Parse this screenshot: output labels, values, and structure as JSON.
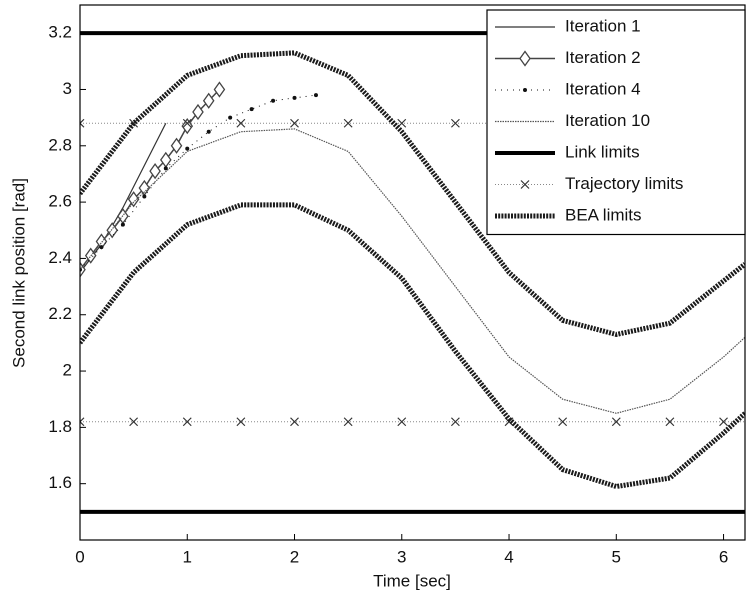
{
  "chart_data": {
    "type": "line",
    "xlabel": "Time [sec]",
    "ylabel": "Second link position [rad]",
    "xlim": [
      0,
      6.2
    ],
    "ylim": [
      1.4,
      3.3
    ],
    "xticks": [
      0,
      1,
      2,
      3,
      4,
      5,
      6
    ],
    "yticks": [
      1.6,
      1.8,
      2,
      2.2,
      2.4,
      2.6,
      2.8,
      3,
      3.2
    ],
    "grid": false,
    "legend": "upper right",
    "series": [
      {
        "name": "Iteration 1",
        "kind": "line",
        "color": "#333333",
        "x": [
          0,
          0.2,
          0.4,
          0.6,
          0.8
        ],
        "values": [
          2.35,
          2.45,
          2.58,
          2.73,
          2.88
        ]
      },
      {
        "name": "Iteration 2",
        "kind": "diamond",
        "color": "#444444",
        "x": [
          0,
          0.1,
          0.2,
          0.3,
          0.4,
          0.5,
          0.6,
          0.7,
          0.8,
          0.9,
          1.0,
          1.1,
          1.2,
          1.3
        ],
        "values": [
          2.36,
          2.41,
          2.46,
          2.5,
          2.55,
          2.61,
          2.65,
          2.71,
          2.75,
          2.8,
          2.87,
          2.92,
          2.96,
          3.0
        ]
      },
      {
        "name": "Iteration 4",
        "kind": "dot",
        "color": "#111111",
        "x": [
          0,
          0.2,
          0.4,
          0.6,
          0.8,
          1.0,
          1.2,
          1.4,
          1.6,
          1.8,
          2.0,
          2.2
        ],
        "values": [
          2.36,
          2.44,
          2.52,
          2.62,
          2.72,
          2.79,
          2.85,
          2.9,
          2.93,
          2.96,
          2.97,
          2.98
        ]
      },
      {
        "name": "Iteration 10",
        "kind": "dotted",
        "color": "#555555",
        "x": [
          0,
          0.5,
          1,
          1.5,
          2,
          2.5,
          3,
          3.5,
          4,
          4.5,
          5,
          5.5,
          6,
          6.2
        ],
        "values": [
          2.36,
          2.6,
          2.78,
          2.85,
          2.86,
          2.78,
          2.55,
          2.3,
          2.05,
          1.9,
          1.85,
          1.9,
          2.05,
          2.12
        ]
      },
      {
        "name": "Link limits",
        "kind": "hline",
        "color": "#000000",
        "values": [
          3.2,
          1.5
        ]
      },
      {
        "name": "Trajectory limits",
        "kind": "hline-x",
        "color": "#888888",
        "values": [
          2.88,
          1.82
        ],
        "marker_x": [
          0,
          0.5,
          1,
          1.5,
          2,
          2.5,
          3,
          3.5,
          4,
          4.5,
          5,
          5.5,
          6
        ]
      },
      {
        "name": "BEA limits",
        "kind": "band",
        "color": "#1a1a1a",
        "x": [
          0,
          0.5,
          1,
          1.5,
          2,
          2.5,
          3,
          3.5,
          4,
          4.5,
          5,
          5.5,
          6,
          6.2
        ],
        "values": [
          2.63,
          2.88,
          3.05,
          3.12,
          3.13,
          3.05,
          2.85,
          2.6,
          2.35,
          2.18,
          2.13,
          2.17,
          2.32,
          2.38
        ],
        "lower": [
          2.1,
          2.35,
          2.52,
          2.59,
          2.59,
          2.5,
          2.33,
          2.07,
          1.83,
          1.65,
          1.59,
          1.62,
          1.78,
          1.85
        ]
      }
    ]
  }
}
